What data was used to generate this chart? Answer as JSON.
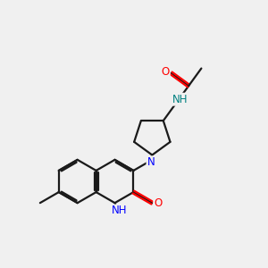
{
  "bg_color": "#f0f0f0",
  "bond_color": "#1a1a1a",
  "N_color": "#0000ff",
  "O_color": "#ff0000",
  "NH_color": "#008080",
  "lw": 1.6,
  "figsize": [
    3.0,
    3.0
  ],
  "dpi": 100,
  "xlim": [
    0,
    10
  ],
  "ylim": [
    0,
    10
  ],
  "BL": 0.82
}
